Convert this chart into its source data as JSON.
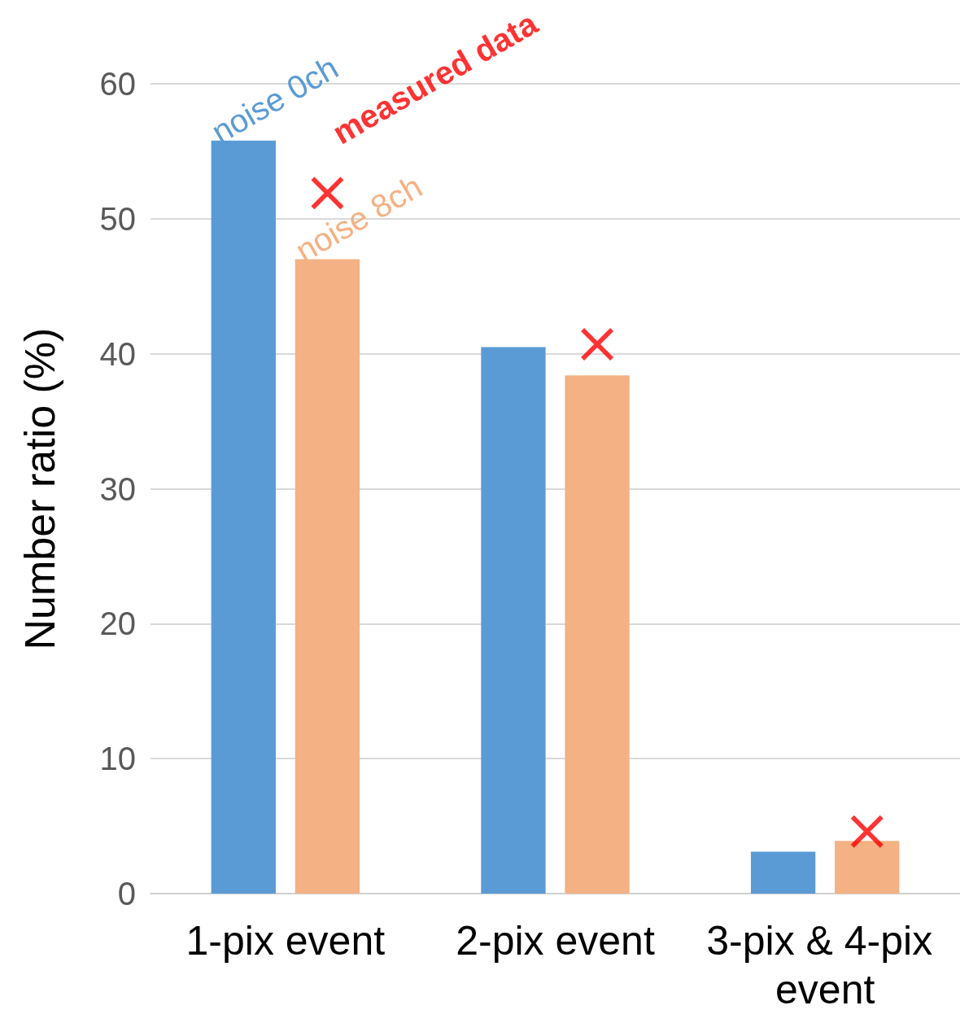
{
  "chart_data": {
    "type": "bar",
    "ylabel": "Number ratio (%)",
    "categories": [
      "1-pix event",
      "2-pix event",
      "3-pix & 4-pix event"
    ],
    "series": [
      {
        "name": "noise 0ch",
        "color": "#5b9bd5",
        "values": [
          55.8,
          40.5,
          3.1
        ]
      },
      {
        "name": "noise 8ch",
        "color": "#f4b183",
        "values": [
          47.0,
          38.4,
          3.9
        ]
      },
      {
        "name": "measured data",
        "type": "scatter",
        "marker": "cross",
        "color": "#ff0000",
        "x": [
          "1-pix event",
          "2-pix event",
          "3-pix & 4-pix event"
        ],
        "values": [
          51.9,
          40.7,
          4.6
        ]
      }
    ],
    "ylim": [
      0,
      60
    ],
    "yticks": [
      0,
      10,
      20,
      30,
      40,
      50,
      60
    ],
    "grid": "y"
  }
}
